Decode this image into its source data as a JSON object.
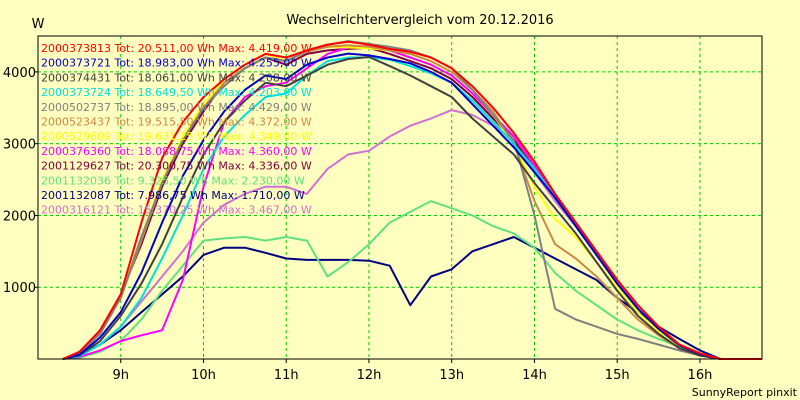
{
  "chart_data": {
    "type": "line",
    "title": "Wechselrichtervergleich vom 20.12.2016",
    "ylabel": "W",
    "xlabel": "",
    "footer": "SunnyReport pinxit",
    "xlim": [
      8.0,
      16.75
    ],
    "ylim": [
      0,
      4500
    ],
    "x_ticks": [
      9,
      10,
      11,
      12,
      13,
      14,
      15,
      16
    ],
    "x_tick_labels": [
      "9h",
      "10h",
      "11h",
      "12h",
      "13h",
      "14h",
      "15h",
      "16h"
    ],
    "y_ticks": [
      1000,
      2000,
      3000,
      4000
    ],
    "y_tick_labels": [
      "1000",
      "2000",
      "3000",
      "4000"
    ],
    "grid": true,
    "legend_position": "top-left",
    "background_color": "#ffffc0",
    "grid_color": "#00cc00",
    "x": [
      8.3,
      8.5,
      8.75,
      9.0,
      9.25,
      9.5,
      9.75,
      10.0,
      10.25,
      10.5,
      10.75,
      11.0,
      11.25,
      11.5,
      11.75,
      12.0,
      12.25,
      12.5,
      12.75,
      13.0,
      13.25,
      13.5,
      13.75,
      14.0,
      14.25,
      14.5,
      14.75,
      15.0,
      15.25,
      15.5,
      15.75,
      16.0,
      16.25,
      16.75
    ],
    "series": [
      {
        "name": "2000373813 Tot: 20.511,00 Wh Max: 4.419,00 W",
        "color": "#ff0000",
        "values": [
          0,
          100,
          400,
          900,
          1900,
          2800,
          3300,
          3650,
          3900,
          4100,
          4250,
          4200,
          4300,
          4380,
          4419,
          4380,
          4320,
          4280,
          4200,
          4050,
          3800,
          3500,
          3150,
          2750,
          2300,
          1900,
          1500,
          1100,
          750,
          450,
          200,
          80,
          0,
          0
        ]
      },
      {
        "name": "2000373721 Tot: 18.983,00 Wh Max: 4.255,00 W",
        "color": "#0000cc",
        "values": [
          0,
          60,
          300,
          650,
          1200,
          1900,
          2550,
          3050,
          3450,
          3750,
          3950,
          3900,
          4100,
          4200,
          4255,
          4230,
          4180,
          4120,
          4000,
          3850,
          3550,
          3250,
          2950,
          2600,
          2250,
          1850,
          1450,
          1050,
          700,
          420,
          190,
          70,
          0,
          0
        ]
      },
      {
        "name": "2000374431 Tot: 18.061,00 Wh Max: 4.208,00 W",
        "color": "#404040",
        "values": [
          0,
          50,
          250,
          600,
          1050,
          1600,
          2250,
          2850,
          3300,
          3600,
          3850,
          3800,
          3950,
          4100,
          4180,
          4208,
          4080,
          3950,
          3800,
          3650,
          3350,
          3100,
          2850,
          2450,
          2100,
          1750,
          1350,
          950,
          600,
          350,
          150,
          50,
          0,
          0
        ]
      },
      {
        "name": "2000373724 Tot: 18.649,50 Wh Max: 4.203,00 W",
        "color": "#00e0e0",
        "values": [
          0,
          40,
          200,
          450,
          850,
          1400,
          2000,
          2650,
          3100,
          3400,
          3650,
          3700,
          3950,
          4150,
          4200,
          4203,
          4170,
          4080,
          3980,
          3850,
          3600,
          3300,
          3000,
          2650,
          2250,
          1850,
          1450,
          1050,
          700,
          420,
          190,
          70,
          0,
          0
        ]
      },
      {
        "name": "2000502737 Tot: 18.895,00 Wh Max: 4.429,00 W",
        "color": "#808080",
        "values": [
          0,
          80,
          350,
          850,
          1700,
          2450,
          3050,
          3500,
          3800,
          4050,
          4200,
          4150,
          4300,
          4380,
          4429,
          4390,
          4350,
          4300,
          4200,
          4050,
          3750,
          3400,
          3050,
          2000,
          700,
          550,
          450,
          350,
          280,
          200,
          120,
          50,
          0,
          0
        ]
      },
      {
        "name": "2000523437 Tot: 19.515,50 Wh Max: 4.372,00 W",
        "color": "#cc8844",
        "values": [
          0,
          80,
          380,
          850,
          1650,
          2450,
          3050,
          3500,
          3850,
          4050,
          4200,
          4150,
          4280,
          4350,
          4372,
          4350,
          4300,
          4250,
          4150,
          4000,
          3750,
          3450,
          3000,
          2200,
          1600,
          1400,
          1150,
          850,
          550,
          330,
          150,
          50,
          0,
          0
        ]
      },
      {
        "name": "2000529609 Tot: 19.631,25 Wh Max: 4.349,00 W",
        "color": "#ffff00",
        "values": [
          0,
          90,
          400,
          900,
          1700,
          2500,
          3100,
          3550,
          3900,
          4100,
          4250,
          4150,
          4300,
          4349,
          4340,
          4330,
          4300,
          4250,
          4150,
          4000,
          3750,
          3400,
          3000,
          2400,
          1950,
          1700,
          1350,
          1000,
          650,
          380,
          170,
          60,
          0,
          0
        ]
      },
      {
        "name": "2000376360 Tot: 18.088,75 Wh Max: 4.360,00 W",
        "color": "#ff00ff",
        "values": [
          0,
          30,
          120,
          250,
          330,
          400,
          1100,
          2400,
          3300,
          3650,
          3800,
          3850,
          4050,
          4250,
          4340,
          4360,
          4300,
          4200,
          4100,
          3950,
          3700,
          3400,
          3100,
          2700,
          2300,
          1900,
          1500,
          1100,
          750,
          450,
          200,
          80,
          0,
          0
        ]
      },
      {
        "name": "2001129627 Tot: 20.300,75 Wh Max: 4.336,00 W",
        "color": "#800040",
        "values": [
          0,
          90,
          400,
          900,
          1600,
          2400,
          3000,
          3450,
          3850,
          4050,
          4200,
          4100,
          4250,
          4300,
          4320,
          4336,
          4250,
          4150,
          4050,
          3900,
          3650,
          3350,
          3050,
          2650,
          2250,
          1850,
          1450,
          1050,
          700,
          420,
          190,
          70,
          0,
          0
        ]
      },
      {
        "name": "2001132036 Tot: 9.325,50 Wh Max: 2.230,00 W",
        "color": "#60e080",
        "values": [
          0,
          20,
          100,
          250,
          550,
          950,
          1300,
          1650,
          1680,
          1700,
          1650,
          1700,
          1650,
          1150,
          1350,
          1600,
          1900,
          2050,
          2200,
          2100,
          2000,
          1850,
          1750,
          1550,
          1200,
          950,
          750,
          550,
          400,
          280,
          170,
          60,
          0,
          0
        ]
      },
      {
        "name": "2001132087 Tot: 7.986,75 Wh Max: 1.710,00 W",
        "color": "#000080",
        "values": [
          0,
          60,
          200,
          400,
          650,
          900,
          1150,
          1450,
          1550,
          1550,
          1480,
          1400,
          1380,
          1380,
          1380,
          1370,
          1300,
          750,
          1150,
          1250,
          1500,
          1600,
          1700,
          1550,
          1400,
          1250,
          1100,
          850,
          650,
          450,
          280,
          120,
          0,
          0
        ]
      },
      {
        "name": "2000316121 Tot: 15.370,25 Wh Max: 3.467,00 W",
        "color": "#d070d0",
        "values": [
          0,
          40,
          200,
          450,
          800,
          1150,
          1500,
          1900,
          2150,
          2300,
          2400,
          2400,
          2300,
          2650,
          2850,
          2900,
          3100,
          3250,
          3350,
          3467,
          3400,
          3250,
          3050,
          2600,
          2200,
          1850,
          1450,
          1050,
          700,
          420,
          190,
          70,
          0,
          0
        ]
      }
    ]
  }
}
